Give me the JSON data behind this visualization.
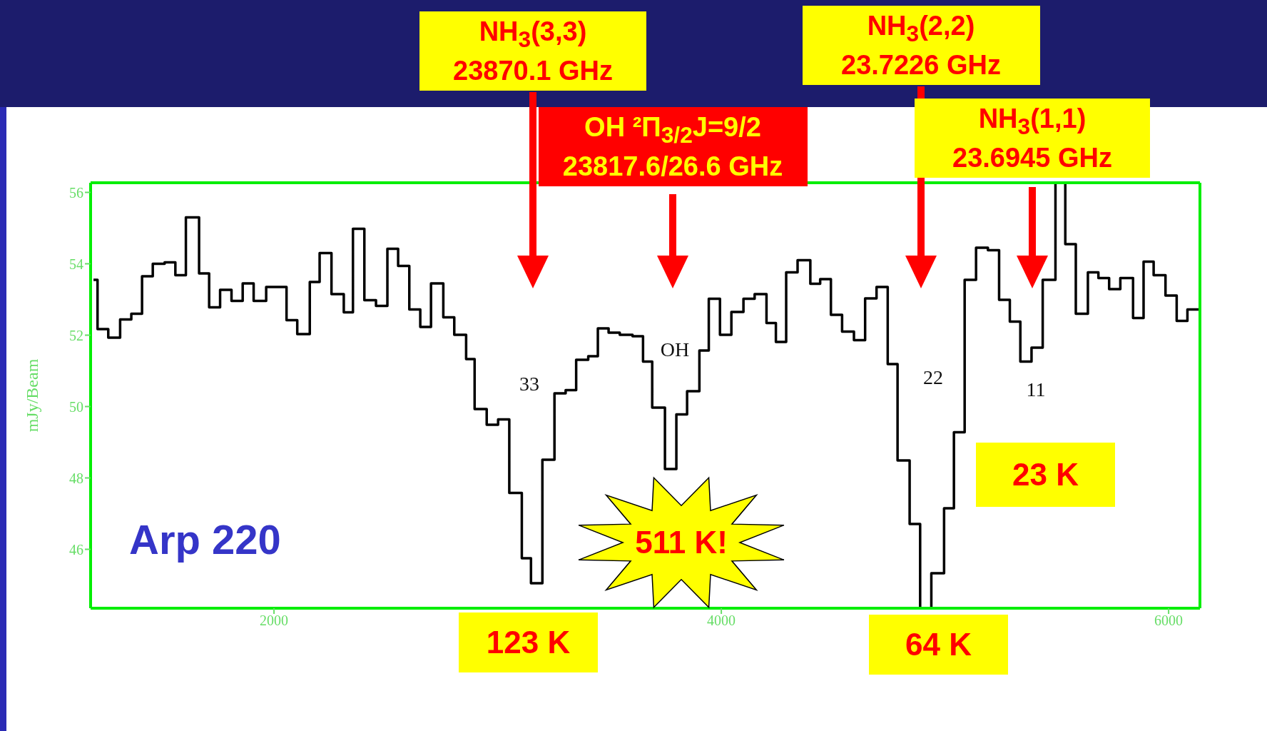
{
  "chart_data": {
    "type": "step",
    "title": "Arp 220",
    "ylabel": "mJy/Beam",
    "xlim": [
      1180,
      6140
    ],
    "xticks": [
      2000,
      4000,
      6000
    ],
    "ylim": [
      44.35,
      56.27
    ],
    "yticks": [
      46,
      48,
      50,
      52,
      54,
      56
    ],
    "grid": false,
    "x": [
      1193,
      1211,
      1259,
      1312,
      1362,
      1410,
      1458,
      1511,
      1559,
      1606,
      1665,
      1710,
      1759,
      1810,
      1860,
      1909,
      1965,
      2056,
      2104,
      2160,
      2204,
      2257,
      2312,
      2353,
      2404,
      2456,
      2507,
      2555,
      2605,
      2654,
      2702,
      2757,
      2806,
      2859,
      2897,
      2951,
      3002,
      3052,
      3108,
      3149,
      3200,
      3254,
      3304,
      3351,
      3405,
      3448,
      3496,
      3546,
      3603,
      3650,
      3691,
      3748,
      3799,
      3847,
      3902,
      3944,
      3994,
      4045,
      4099,
      4149,
      4202,
      4244,
      4290,
      4341,
      4398,
      4442,
      4490,
      4540,
      4593,
      4643,
      4694,
      4744,
      4788,
      4842,
      4889,
      4939,
      4996,
      5040,
      5088,
      5139,
      5192,
      5242,
      5290,
      5337,
      5387,
      5437,
      5494,
      5538,
      5585,
      5639,
      5686,
      5734,
      5784,
      5841,
      5888,
      5933,
      5986,
      6036,
      6084,
      6135
    ],
    "series": [
      {
        "color": "#000000",
        "values": [
          53.55,
          52.17,
          51.93,
          52.44,
          52.6,
          53.65,
          54.0,
          54.04,
          53.68,
          55.3,
          53.73,
          52.78,
          53.27,
          52.96,
          53.45,
          52.96,
          53.35,
          52.42,
          52.03,
          53.49,
          54.3,
          53.15,
          52.64,
          54.98,
          52.98,
          52.82,
          54.42,
          53.94,
          52.72,
          52.23,
          53.45,
          52.5,
          52.01,
          51.33,
          49.93,
          49.49,
          49.64,
          47.58,
          45.75,
          45.05,
          48.51,
          50.37,
          50.46,
          51.31,
          51.41,
          52.19,
          52.07,
          52.01,
          51.97,
          51.26,
          49.97,
          48.25,
          49.78,
          50.43,
          51.57,
          53.02,
          52.01,
          52.65,
          53.02,
          53.15,
          52.34,
          51.81,
          53.76,
          54.1,
          53.44,
          53.57,
          52.57,
          52.1,
          51.86,
          53.03,
          53.35,
          51.19,
          48.49,
          46.71,
          44.35,
          45.33,
          47.15,
          49.28,
          53.55,
          54.45,
          54.38,
          52.99,
          52.38,
          51.26,
          51.65,
          53.55,
          56.27,
          54.55,
          52.6,
          53.76,
          53.6,
          53.29,
          53.6,
          52.48,
          54.06,
          53.68,
          53.11,
          52.4,
          52.72,
          52.72
        ]
      }
    ],
    "annotations": [
      "NH$_{3}$(3,3)\n23870.1 GHz",
      "OH ²Π$_{3/2}$J=9/2\n23817.6/26.6 GHz",
      "NH$_{3}$(2,2)\n23.7226 GHz",
      "NH$_{3}$(1,1)\n23.6945 GHz",
      "33",
      "OH",
      "22",
      "11",
      "123 K",
      "511 K!",
      "64 K",
      "23 K"
    ]
  }
}
